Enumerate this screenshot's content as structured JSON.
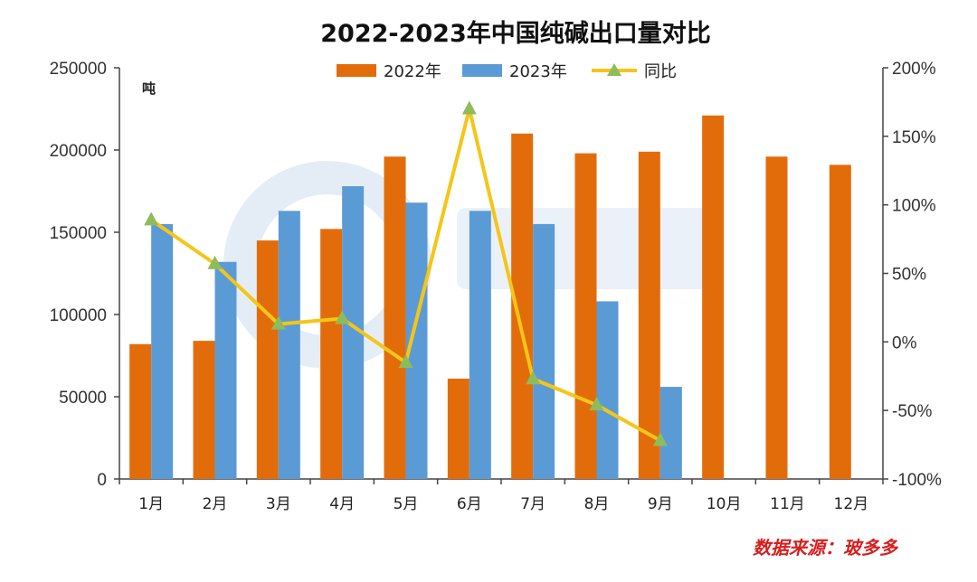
{
  "chart_data": {
    "type": "bar",
    "title": "2022-2023年中国纯碱出口量对比",
    "unit_label": "吨",
    "categories": [
      "1月",
      "2月",
      "3月",
      "4月",
      "5月",
      "6月",
      "7月",
      "8月",
      "9月",
      "10月",
      "11月",
      "12月"
    ],
    "series": [
      {
        "name": "2022年",
        "kind": "bar",
        "axis": "left",
        "color": "#e36c0a",
        "values": [
          82000,
          84000,
          145000,
          152000,
          196000,
          61000,
          210000,
          198000,
          199000,
          221000,
          196000,
          191000
        ]
      },
      {
        "name": "2023年",
        "kind": "bar",
        "axis": "left",
        "color": "#5b9bd5",
        "values": [
          155000,
          132000,
          163000,
          178000,
          168000,
          163000,
          155000,
          108000,
          56000,
          null,
          null,
          null
        ]
      },
      {
        "name": "同比",
        "kind": "line",
        "axis": "right",
        "color": "#f5c518",
        "marker_color": "#8fbc5a",
        "values": [
          89,
          57,
          13,
          17,
          -15,
          170,
          -27,
          -46,
          -72,
          null,
          null,
          null
        ]
      }
    ],
    "ylim_left": [
      0,
      250000
    ],
    "yticks_left": [
      "0",
      "50000",
      "100000",
      "150000",
      "200000",
      "250000"
    ],
    "ylim_right": [
      -100,
      200
    ],
    "yticks_right": [
      "-100%",
      "-50%",
      "0%",
      "50%",
      "100%",
      "150%",
      "200%"
    ],
    "legend_position": "top-center"
  },
  "source_label": "数据来源：玻多多"
}
